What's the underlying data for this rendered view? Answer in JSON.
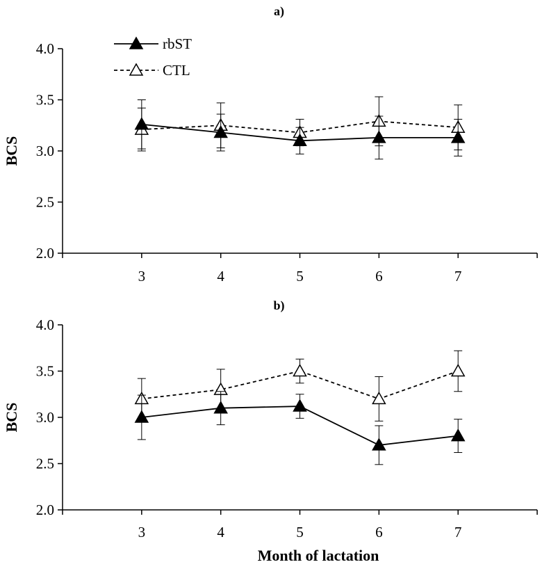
{
  "chart_data": [
    {
      "type": "line",
      "title": "a)",
      "xlabel": "",
      "ylabel": "BCS",
      "x": [
        3,
        4,
        5,
        6,
        7
      ],
      "xlim": [
        2,
        8
      ],
      "ylim": [
        2.0,
        4.0
      ],
      "yticks": [
        "2.0",
        "2.5",
        "3.0",
        "3.5",
        "4.0"
      ],
      "xticks": [
        "3",
        "4",
        "5",
        "6",
        "7"
      ],
      "legend": {
        "position": "top-left"
      },
      "series": [
        {
          "name": "rbST",
          "marker": "filled-triangle",
          "line": "solid",
          "values": [
            3.26,
            3.18,
            3.1,
            3.13,
            3.13
          ],
          "errors": [
            0.24,
            0.18,
            0.13,
            0.21,
            0.18
          ]
        },
        {
          "name": "CTL",
          "marker": "open-triangle",
          "line": "dashed",
          "values": [
            3.21,
            3.25,
            3.18,
            3.29,
            3.23
          ],
          "errors": [
            0.21,
            0.22,
            0.13,
            0.24,
            0.22
          ]
        }
      ]
    },
    {
      "type": "line",
      "title": "b)",
      "xlabel": "Month of lactation",
      "ylabel": "BCS",
      "x": [
        3,
        4,
        5,
        6,
        7
      ],
      "xlim": [
        2,
        8
      ],
      "ylim": [
        2.0,
        4.0
      ],
      "yticks": [
        "2.0",
        "2.5",
        "3.0",
        "3.5",
        "4.0"
      ],
      "xticks": [
        "3",
        "4",
        "5",
        "6",
        "7"
      ],
      "series": [
        {
          "name": "rbST",
          "marker": "filled-triangle",
          "line": "solid",
          "values": [
            3.0,
            3.1,
            3.12,
            2.7,
            2.8
          ],
          "errors": [
            0.24,
            0.18,
            0.13,
            0.21,
            0.18
          ]
        },
        {
          "name": "CTL",
          "marker": "open-triangle",
          "line": "dashed",
          "values": [
            3.2,
            3.3,
            3.5,
            3.2,
            3.5
          ],
          "errors": [
            0.22,
            0.22,
            0.13,
            0.24,
            0.22
          ]
        }
      ]
    }
  ],
  "colors": {
    "line": "#000000",
    "background": "#ffffff"
  }
}
